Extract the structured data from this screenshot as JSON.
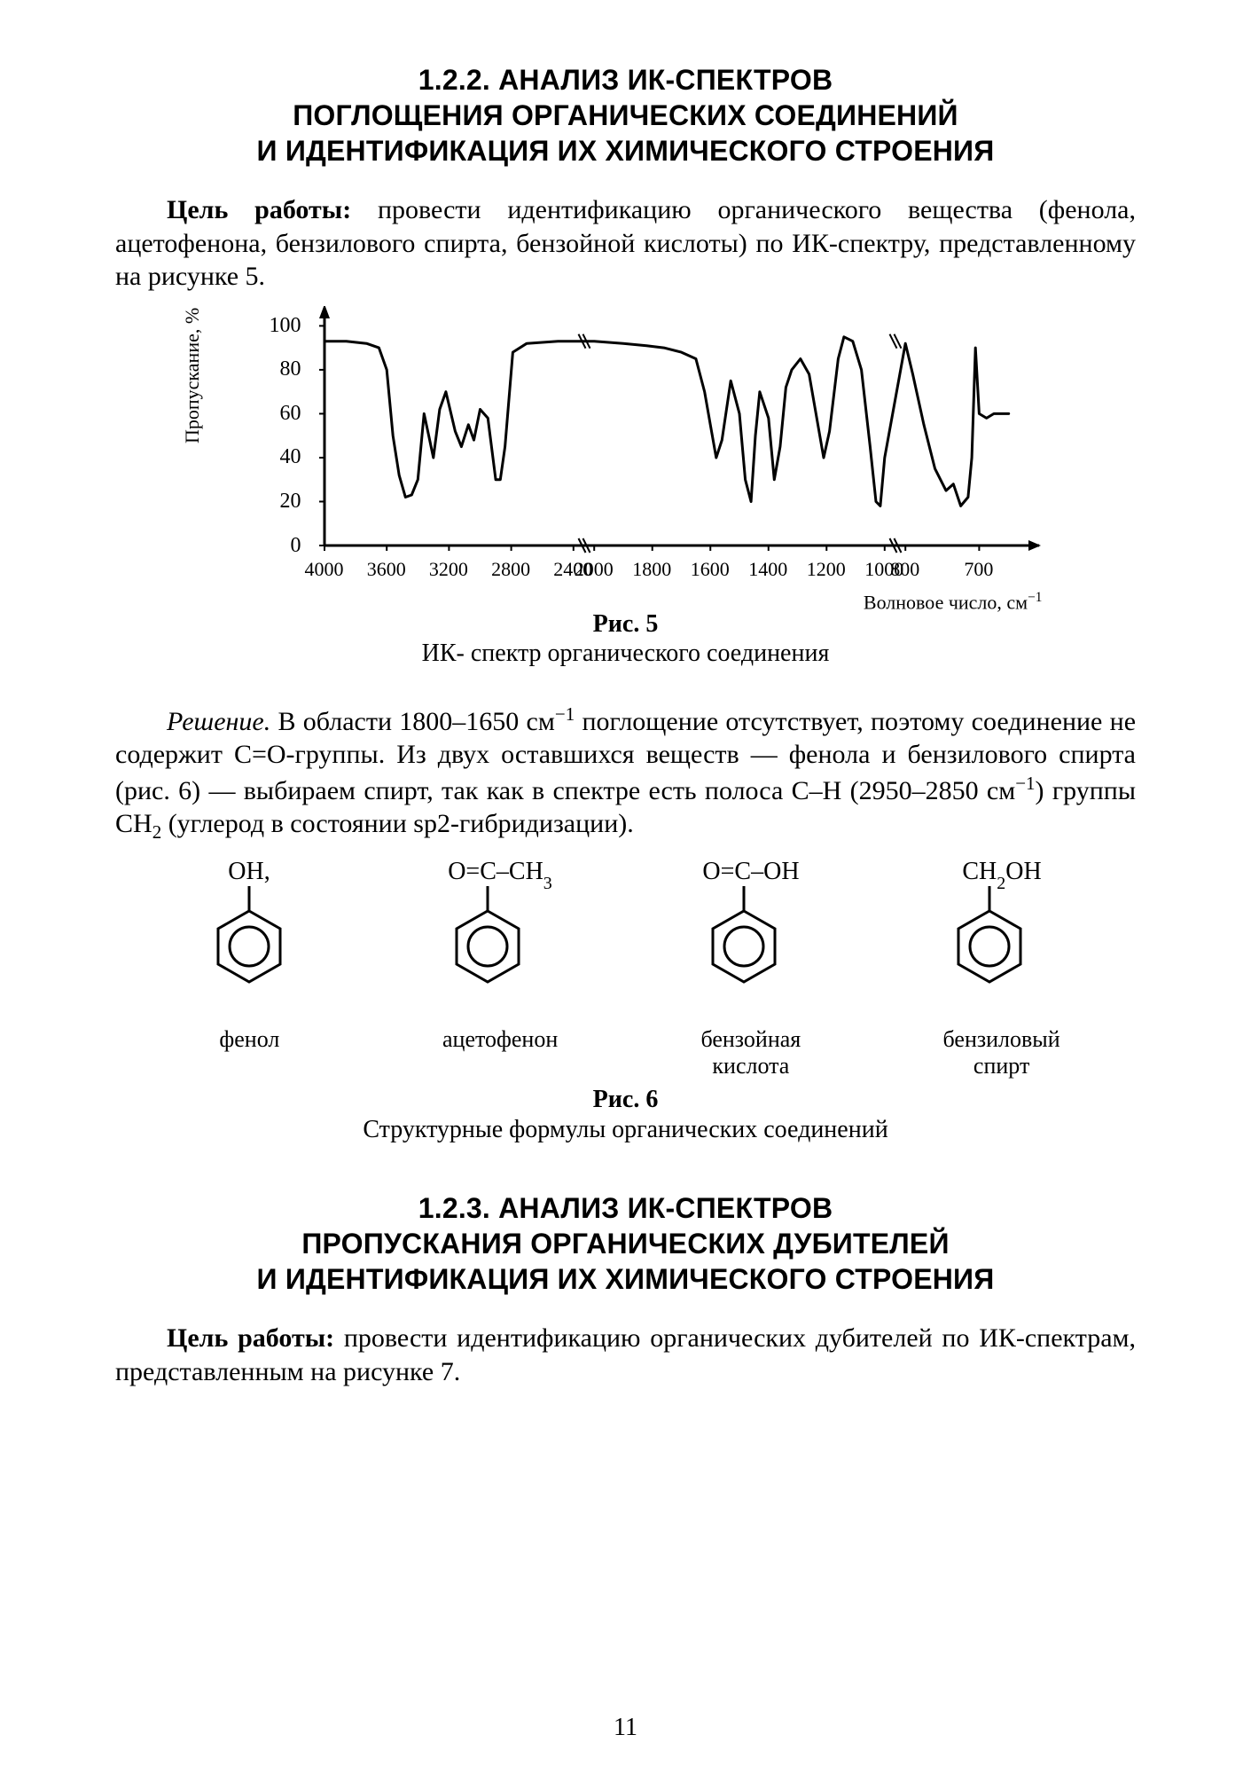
{
  "section_1": {
    "heading_l1": "1.2.2. АНАЛИЗ ИК-СПЕКТРОВ",
    "heading_l2": "ПОГЛОЩЕНИЯ ОРГАНИЧЕСКИХ СОЕДИНЕНИЙ",
    "heading_l3": "И ИДЕНТИФИКАЦИЯ ИХ ХИМИЧЕСКОГО СТРОЕНИЯ",
    "goal_label": "Цель работы:",
    "goal_text": " провести идентификацию органического вещества (фенола, ацетофенона, бензилового спирта, бензойной кислоты) по ИК-спектру, представленному на рисунке 5."
  },
  "spectrum_chart": {
    "type": "line",
    "ylabel": "Пропускание, %",
    "xlabel_prefix": "Волновое число, см",
    "xlabel_sup": "−1",
    "ylim": [
      0,
      105
    ],
    "xlim": [
      4000,
      600
    ],
    "yticks": [
      0,
      20,
      40,
      60,
      80,
      100
    ],
    "xticks": [
      4000,
      3600,
      3200,
      2800,
      2400,
      2000,
      1800,
      1600,
      1400,
      1200,
      1000,
      800,
      700
    ],
    "break_between": [
      2400,
      2000
    ],
    "break2_between": [
      1000,
      800
    ],
    "line_color": "#000000",
    "line_width": 3,
    "axis_color": "#000000",
    "axis_width": 3,
    "background_color": "#ffffff",
    "points": [
      [
        4000,
        93
      ],
      [
        3860,
        93
      ],
      [
        3730,
        92
      ],
      [
        3650,
        90
      ],
      [
        3600,
        80
      ],
      [
        3560,
        50
      ],
      [
        3520,
        32
      ],
      [
        3480,
        22
      ],
      [
        3440,
        23
      ],
      [
        3400,
        30
      ],
      [
        3360,
        60
      ],
      [
        3330,
        50
      ],
      [
        3300,
        40
      ],
      [
        3260,
        62
      ],
      [
        3220,
        70
      ],
      [
        3160,
        52
      ],
      [
        3120,
        45
      ],
      [
        3075,
        55
      ],
      [
        3040,
        48
      ],
      [
        3000,
        62
      ],
      [
        2950,
        58
      ],
      [
        2900,
        30
      ],
      [
        2870,
        30
      ],
      [
        2840,
        45
      ],
      [
        2790,
        88
      ],
      [
        2700,
        92
      ],
      [
        2500,
        93
      ],
      [
        2400,
        93
      ],
      [
        2000,
        93
      ],
      [
        1900,
        92
      ],
      [
        1820,
        91
      ],
      [
        1760,
        90
      ],
      [
        1700,
        88
      ],
      [
        1650,
        85
      ],
      [
        1620,
        70
      ],
      [
        1600,
        55
      ],
      [
        1580,
        40
      ],
      [
        1560,
        48
      ],
      [
        1530,
        75
      ],
      [
        1500,
        60
      ],
      [
        1480,
        30
      ],
      [
        1460,
        20
      ],
      [
        1445,
        50
      ],
      [
        1430,
        70
      ],
      [
        1400,
        58
      ],
      [
        1380,
        30
      ],
      [
        1360,
        45
      ],
      [
        1340,
        72
      ],
      [
        1320,
        80
      ],
      [
        1290,
        85
      ],
      [
        1260,
        78
      ],
      [
        1230,
        55
      ],
      [
        1210,
        40
      ],
      [
        1190,
        52
      ],
      [
        1160,
        85
      ],
      [
        1140,
        95
      ],
      [
        1110,
        93
      ],
      [
        1080,
        80
      ],
      [
        1050,
        45
      ],
      [
        1030,
        20
      ],
      [
        1015,
        18
      ],
      [
        1000,
        40
      ],
      [
        800,
        92
      ],
      [
        790,
        78
      ],
      [
        775,
        55
      ],
      [
        760,
        35
      ],
      [
        745,
        25
      ],
      [
        735,
        28
      ],
      [
        725,
        18
      ],
      [
        715,
        22
      ],
      [
        710,
        40
      ],
      [
        705,
        90
      ],
      [
        700,
        60
      ],
      [
        690,
        58
      ],
      [
        680,
        60
      ],
      [
        660,
        60
      ]
    ]
  },
  "fig5": {
    "num": "Рис. 5",
    "title": "ИК- спектр органического соединения"
  },
  "solution": {
    "label": "Решение.",
    "text_a": " В области 1800–1650 см",
    "sup1": "−1",
    "text_b": " поглощение отсутствует, поэтому соединение не содержит С=О-группы. Из двух оставшихся веществ — фенола и бензилового спирта (рис. 6) — выбираем спирт, так как в спектре есть полоса С–Н (2950–2850 см",
    "sup2": "−1",
    "text_c": ") группы СН",
    "sub1": "2",
    "text_d": " (углерод в состоянии sp2-гибридизации)."
  },
  "molecules": [
    {
      "top": "OH,",
      "name": "фенол"
    },
    {
      "top": "O=C–CH₃",
      "name": "ацетофенон"
    },
    {
      "top": "O=C–OH",
      "name": "бензойная\nкислота"
    },
    {
      "top": "CH₂OH",
      "name": "бензиловый\nспирт"
    }
  ],
  "fig6": {
    "num": "Рис. 6",
    "title": "Структурные формулы органических соединений"
  },
  "section_2": {
    "heading_l1": "1.2.3. АНАЛИЗ ИК-СПЕКТРОВ",
    "heading_l2": "ПРОПУСКАНИЯ ОРГАНИЧЕСКИХ ДУБИТЕЛЕЙ",
    "heading_l3": "И ИДЕНТИФИКАЦИЯ ИХ ХИМИЧЕСКОГО СТРОЕНИЯ",
    "goal_label": "Цель работы:",
    "goal_text": " провести идентификацию органических дубителей по ИК-спектрам, представленным на рисунке 7."
  },
  "page_number": "11"
}
